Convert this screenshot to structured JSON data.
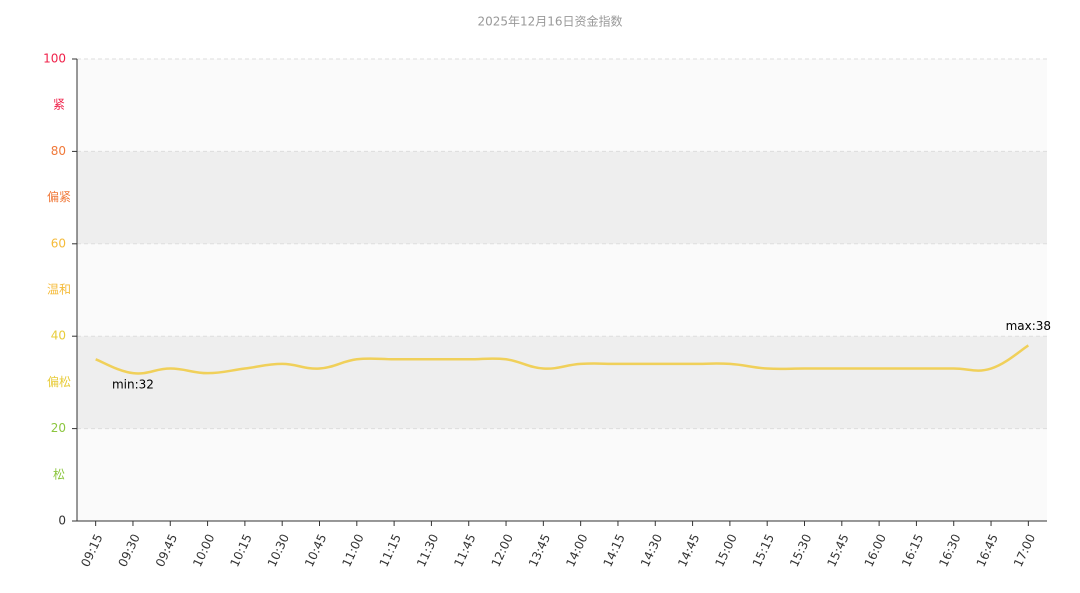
{
  "chart_data": {
    "type": "line",
    "title": "2025年12月16日资金指数",
    "categories": [
      "09:15",
      "09:30",
      "09:45",
      "10:00",
      "10:15",
      "10:30",
      "10:45",
      "11:00",
      "11:15",
      "11:30",
      "11:45",
      "12:00",
      "13:45",
      "14:00",
      "14:15",
      "14:30",
      "14:45",
      "15:00",
      "15:15",
      "15:30",
      "15:45",
      "16:00",
      "16:15",
      "16:30",
      "16:45",
      "17:00"
    ],
    "series": [
      {
        "name": "资金指数",
        "color": "#f0d05a",
        "values": [
          35,
          32,
          33,
          32,
          33,
          34,
          33,
          35,
          35,
          35,
          35,
          35,
          33,
          34,
          34,
          34,
          34,
          34,
          33,
          33,
          33,
          33,
          33,
          33,
          33,
          38
        ]
      }
    ],
    "annotations": [
      "min:32",
      "max:38"
    ],
    "ylim": [
      0,
      100
    ],
    "yticks": [
      0,
      20,
      40,
      60,
      80,
      100
    ],
    "ytick_colors": [
      "#333333",
      "#8cc63f",
      "#e8cc3a",
      "#f5bb3a",
      "#f0793a",
      "#f0214a"
    ],
    "zones": [
      "松",
      "偏松",
      "温和",
      "偏紧",
      "紧"
    ],
    "grid": true
  }
}
